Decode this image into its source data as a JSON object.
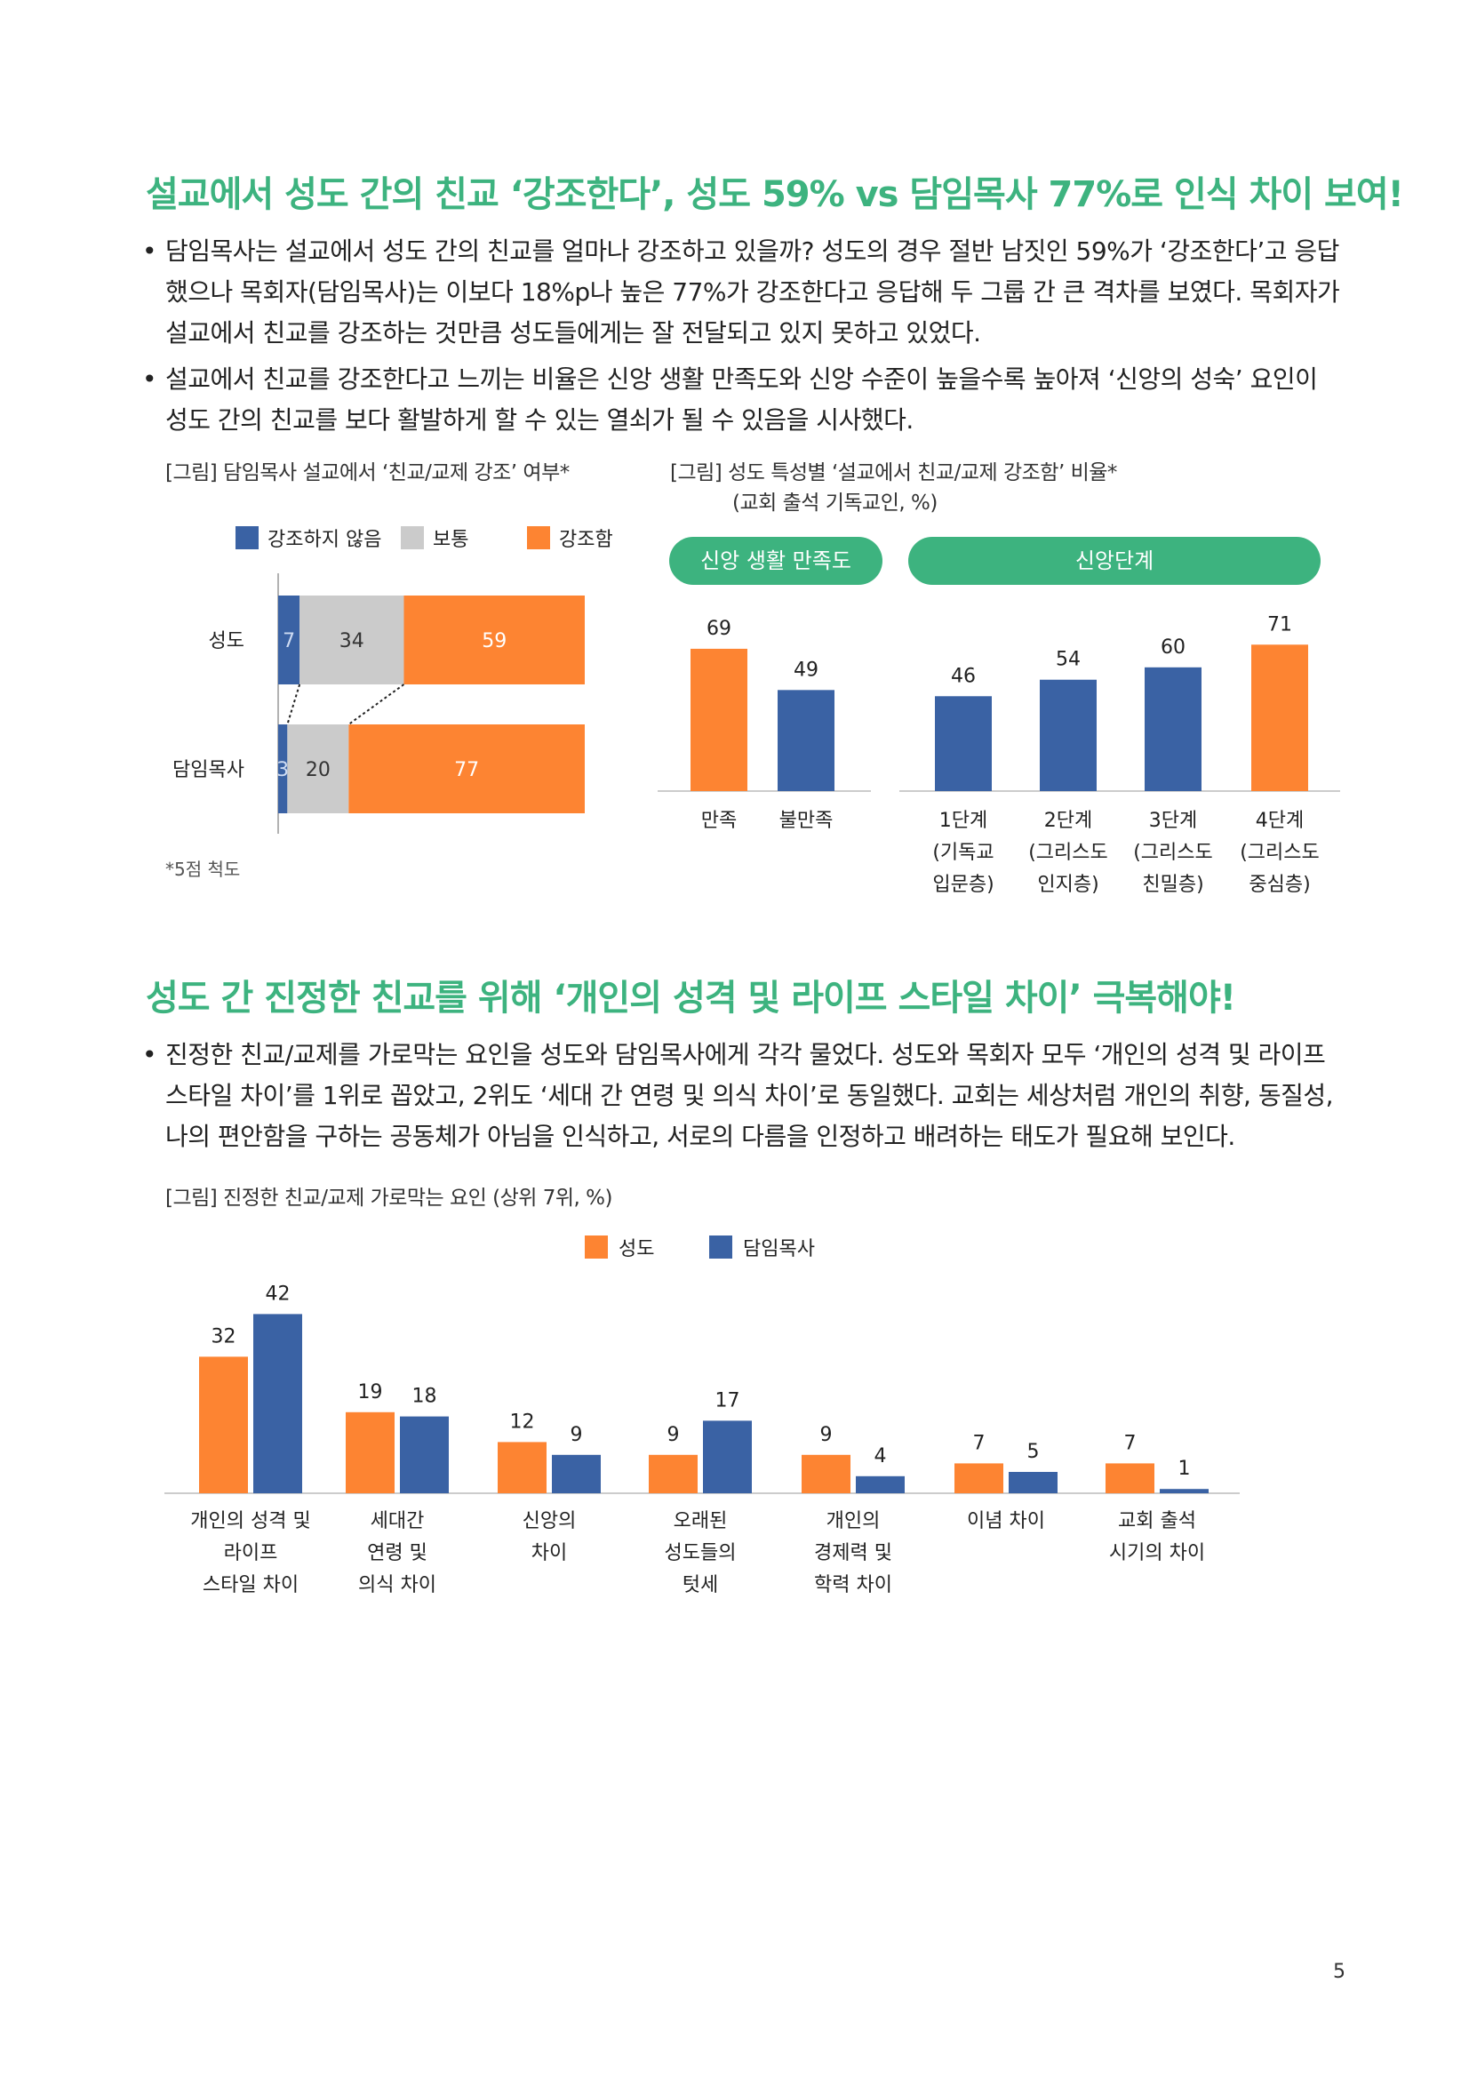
{
  "section1": {
    "heading": "설교에서 성도 간의 친교 ‘강조한다’, 성도 59% vs 담임목사 77%로 인식 차이 보여!",
    "bullets": [
      "담임목사는 설교에서 성도 간의 친교를 얼마나 강조하고 있을까? 성도의 경우 절반 남짓인 59%가 ‘강조한다’고 응답했으나 목회자(담임목사)는 이보다 18%p나 높은 77%가 강조한다고 응답해 두 그룹 간 큰 격차를 보였다. 목회자가 설교에서 친교를 강조하는 것만큼 성도들에게는 잘 전달되고 있지 못하고 있었다.",
      "설교에서 친교를 강조한다고 느끼는 비율은 신앙 생활 만족도와 신앙 수준이 높을수록 높아져 ‘신앙의 성숙’ 요인이 성도 간의 친교를 보다 활발하게 할 수 있는 열쇠가 될 수 있음을 시사했다."
    ]
  },
  "figure1": {
    "caption": "[그림] 담임목사 설교에서 ‘친교/교제 강조’ 여부*",
    "note": "*5점 척도"
  },
  "figure2": {
    "caption": "[그림] 성도 특성별 ‘설교에서 친교/교제 강조함’ 비율*",
    "subcaption": "(교회 출석 기독교인, %)",
    "group_labels": [
      "신앙 생활 만족도",
      "신앙단계"
    ]
  },
  "section2": {
    "heading": "성도 간 진정한 친교를 위해 ‘개인의 성격 및 라이프 스타일 차이’ 극복해야!",
    "bullets": [
      "진정한 친교/교제를 가로막는 요인을 성도와 담임목사에게 각각 물었다. 성도와 목회자 모두 ‘개인의 성격 및 라이프 스타일 차이’를 1위로 꼽았고, 2위도 ‘세대 간 연령 및 의식 차이’로 동일했다. 교회는 세상처럼 개인의 취향, 동질성, 나의 편안함을 구하는 공동체가 아님을 인식하고, 서로의 다름을 인정하고 배려하는 태도가 필요해 보인다."
    ]
  },
  "figure3": {
    "caption": "[그림] 진정한 친교/교제 가로막는 요인 (상위 7위, %)"
  },
  "page_number": "5",
  "colors": {
    "orange": "#fd8432",
    "blue": "#3a62a4",
    "gray": "#cbcbcb",
    "green": "#3db37f"
  },
  "chart_data": [
    {
      "type": "bar",
      "orientation": "horizontal-stacked",
      "categories": [
        "성도",
        "담임목사"
      ],
      "series": [
        {
          "name": "강조하지 않음",
          "values": [
            7,
            3
          ],
          "color": "#3a62a4"
        },
        {
          "name": "보통",
          "values": [
            34,
            20
          ],
          "color": "#cbcbcb"
        },
        {
          "name": "강조함",
          "values": [
            59,
            77
          ],
          "color": "#fd8432"
        }
      ],
      "legend": "top"
    },
    {
      "type": "bar",
      "categories": [
        "만족",
        "불만족",
        "1단계\n(기독교\n입문층)",
        "2단계\n(그리스도\n인지층)",
        "3단계\n(그리스도\n친밀층)",
        "4단계\n(그리스도\n중심층)"
      ],
      "values": [
        69,
        49,
        46,
        54,
        60,
        71
      ],
      "colors": [
        "#fd8432",
        "#3a62a4",
        "#3a62a4",
        "#3a62a4",
        "#3a62a4",
        "#fd8432"
      ]
    },
    {
      "type": "bar",
      "categories": [
        "개인의 성격 및\n라이프\n스타일 차이",
        "세대간\n연령 및\n의식 차이",
        "신앙의\n차이",
        "오래된\n성도들의\n텃세",
        "개인의\n경제력 및\n학력 차이",
        "이념 차이",
        "교회 출석\n시기의 차이"
      ],
      "series": [
        {
          "name": "성도",
          "values": [
            32,
            19,
            12,
            9,
            9,
            7,
            7
          ],
          "color": "#fd8432"
        },
        {
          "name": "담임목사",
          "values": [
            42,
            18,
            9,
            17,
            4,
            5,
            1
          ],
          "color": "#3a62a4"
        }
      ],
      "legend": "top"
    }
  ]
}
